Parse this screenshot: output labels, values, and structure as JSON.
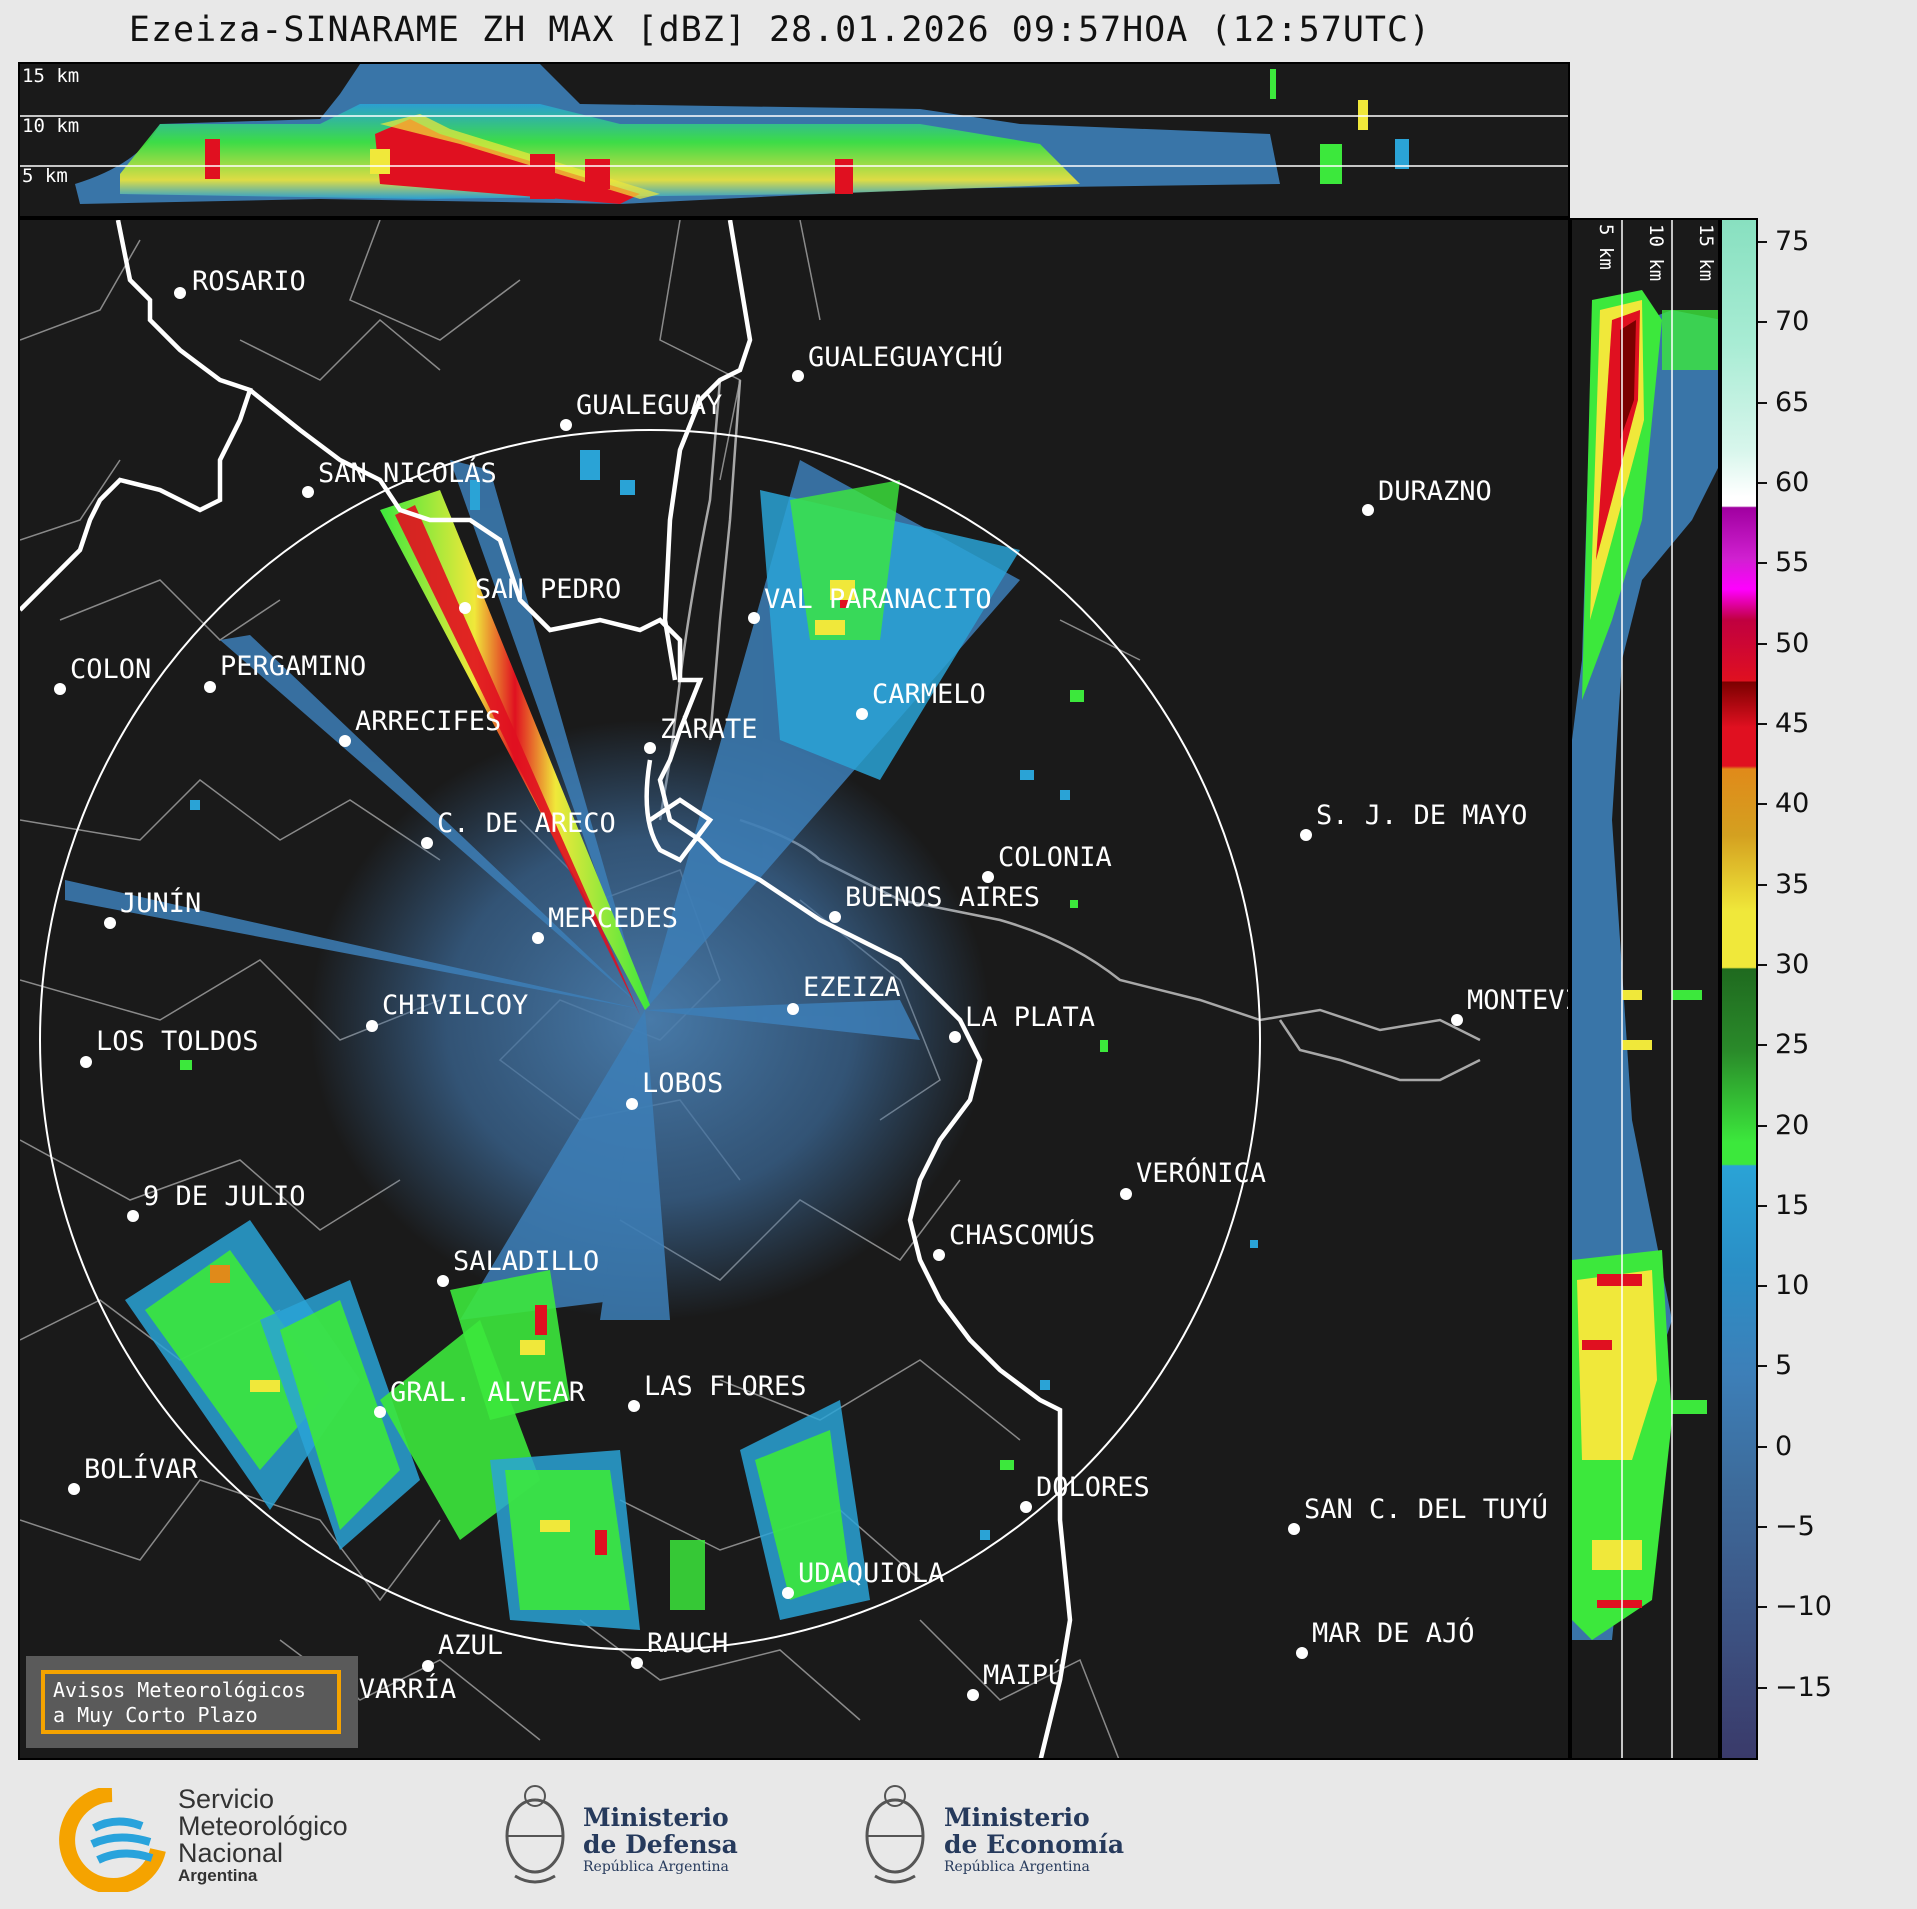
{
  "title": "Ezeiza-SINARAME ZH MAX [dBZ] 28.01.2026 09:57HOA (12:57UTC)",
  "top_panel": {
    "height_labels": [
      "15 km",
      "10 km",
      "5 km"
    ]
  },
  "side_panel": {
    "height_labels": [
      "5 km",
      "10 km",
      "15 km"
    ]
  },
  "colorbar": {
    "ticks": [
      "75",
      "70",
      "65",
      "60",
      "55",
      "50",
      "45",
      "40",
      "35",
      "30",
      "25",
      "20",
      "15",
      "10",
      "5",
      "0",
      "−5",
      "−10",
      "−15"
    ],
    "tick_values": [
      75,
      70,
      65,
      60,
      55,
      50,
      45,
      40,
      35,
      30,
      25,
      20,
      15,
      10,
      5,
      0,
      -5,
      -10,
      -15
    ],
    "range": [
      -19.5,
      76.5
    ],
    "colors": {
      "purple_dark": "#3a3a6a",
      "blue_dark": "#3d5c8c",
      "blue": "#3d7fb8",
      "cyan": "#2aa3d6",
      "green_bright": "#3ce83c",
      "green_dark": "#1f6a1f",
      "yellow": "#f0e83a",
      "orange": "#e08a1a",
      "red": "#e01020",
      "dark_red": "#7a0000",
      "magenta": "#d020d0",
      "white": "#ffffff",
      "mint": "#88e0c0"
    }
  },
  "cities": [
    {
      "name": "ROSARIO"
    },
    {
      "name": "GUALEGUAYCHÚ"
    },
    {
      "name": "GUALEGUAY"
    },
    {
      "name": "SAN NICOLÁS"
    },
    {
      "name": "DURAZNO"
    },
    {
      "name": "SAN PEDRO"
    },
    {
      "name": "VAL PARANACITO"
    },
    {
      "name": "COLON"
    },
    {
      "name": "PERGAMINO"
    },
    {
      "name": "CARMELO"
    },
    {
      "name": "ARRECIFES"
    },
    {
      "name": "ZÁRATE"
    },
    {
      "name": "S. J. DE MAYO"
    },
    {
      "name": "C. DE ARECO"
    },
    {
      "name": "COLONIA"
    },
    {
      "name": "JUNÍN"
    },
    {
      "name": "BUENOS AIRES"
    },
    {
      "name": "MERCEDES"
    },
    {
      "name": "EZEIZA"
    },
    {
      "name": "MONTEVIDEO"
    },
    {
      "name": "CHIVILCOY"
    },
    {
      "name": "LA PLATA"
    },
    {
      "name": "LOS TOLDOS"
    },
    {
      "name": "LOBOS"
    },
    {
      "name": "VERÓNICA"
    },
    {
      "name": "9 DE JULIO"
    },
    {
      "name": "CHASCOMÚS"
    },
    {
      "name": "SALADILLO"
    },
    {
      "name": "GRAL. ALVEAR"
    },
    {
      "name": "LAS FLORES"
    },
    {
      "name": "BOLÍVAR"
    },
    {
      "name": "DOLORES"
    },
    {
      "name": "SAN C. DEL TUYÚ"
    },
    {
      "name": "UDAQUIOLA"
    },
    {
      "name": "AZUL"
    },
    {
      "name": "OLAVARRÍA"
    },
    {
      "name": "RAUCH"
    },
    {
      "name": "MAR DE AJÓ"
    },
    {
      "name": "MAIPÚ"
    }
  ],
  "notice": {
    "line1": "Avisos Meteorológicos",
    "line2": "a Muy Corto Plazo",
    "border_color": "#f5a300"
  },
  "logos": {
    "smn": {
      "line1": "Servicio",
      "line2": "Meteorológico",
      "line3": "Nacional",
      "line4": "Argentina"
    },
    "defensa": {
      "line1": "Ministerio",
      "line2": "de Defensa",
      "line3": "República Argentina"
    },
    "economia": {
      "line1": "Ministerio",
      "line2": "de Economía",
      "line3": "República Argentina"
    }
  }
}
